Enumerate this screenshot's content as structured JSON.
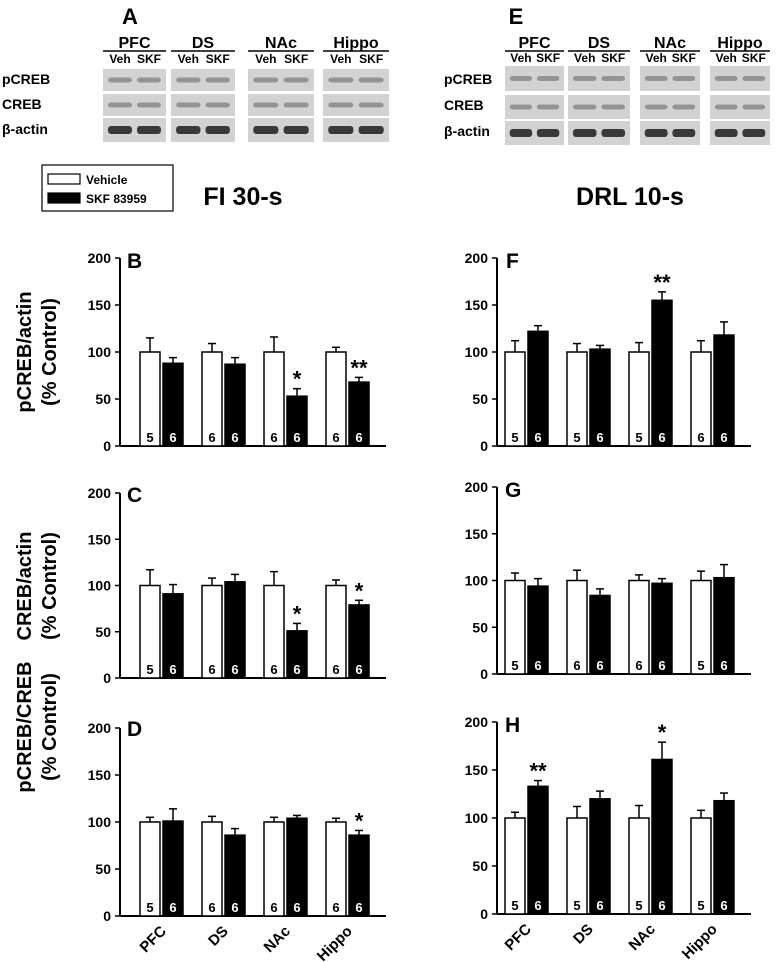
{
  "blot_panels": [
    {
      "letter": "A",
      "regions": [
        "PFC",
        "DS",
        "NAc",
        "Hippo"
      ],
      "lanes": [
        "Veh",
        "SKF"
      ],
      "rows": [
        "pCREB",
        "CREB",
        "β-actin"
      ]
    },
    {
      "letter": "E",
      "regions": [
        "PFC",
        "DS",
        "NAc",
        "Hippo"
      ],
      "lanes": [
        "Veh",
        "SKF"
      ],
      "rows": [
        "pCREB",
        "CREB",
        "β-actin"
      ]
    }
  ],
  "legend": {
    "items": [
      {
        "label": "Vehicle",
        "color": "#ffffff"
      },
      {
        "label": "SKF 83959",
        "color": "#000000"
      }
    ]
  },
  "column_titles": [
    "FI 30-s",
    "DRL 10-s"
  ],
  "row_ylabels": [
    [
      "pCREB/actin",
      "(% Control)"
    ],
    [
      "CREB/actin",
      "(% Control)"
    ],
    [
      "pCREB/CREB",
      "(% Control)"
    ]
  ],
  "chart_data": [
    {
      "type": "bar",
      "panel": "B",
      "categories": [
        "PFC",
        "DS",
        "NAc",
        "Hippo"
      ],
      "ylim": [
        0,
        200
      ],
      "yticks": [
        "0",
        "50",
        "100",
        "150",
        "200"
      ],
      "series": [
        {
          "name": "Vehicle",
          "values": [
            100,
            100,
            100,
            100
          ],
          "errors": [
            15,
            9,
            16,
            5
          ],
          "n": [
            "5",
            "6",
            "6",
            "6"
          ]
        },
        {
          "name": "SKF 83959",
          "values": [
            88,
            87,
            53,
            68
          ],
          "errors": [
            6,
            7,
            8,
            5
          ],
          "n": [
            "6",
            "6",
            "6",
            "6"
          ]
        }
      ],
      "significance": [
        "",
        "",
        "*",
        "**"
      ]
    },
    {
      "type": "bar",
      "panel": "C",
      "categories": [
        "PFC",
        "DS",
        "NAc",
        "Hippo"
      ],
      "ylim": [
        0,
        200
      ],
      "yticks": [
        "0",
        "50",
        "100",
        "150",
        "200"
      ],
      "series": [
        {
          "name": "Vehicle",
          "values": [
            100,
            100,
            100,
            100
          ],
          "errors": [
            17,
            8,
            15,
            6
          ],
          "n": [
            "5",
            "6",
            "6",
            "6"
          ]
        },
        {
          "name": "SKF 83959",
          "values": [
            91,
            104,
            51,
            79
          ],
          "errors": [
            10,
            8,
            8,
            5
          ],
          "n": [
            "6",
            "6",
            "6",
            "6"
          ]
        }
      ],
      "significance": [
        "",
        "",
        "*",
        "*"
      ]
    },
    {
      "type": "bar",
      "panel": "D",
      "categories": [
        "PFC",
        "DS",
        "NAc",
        "Hippo"
      ],
      "ylim": [
        0,
        200
      ],
      "yticks": [
        "0",
        "50",
        "100",
        "150",
        "200"
      ],
      "series": [
        {
          "name": "Vehicle",
          "values": [
            100,
            100,
            100,
            100
          ],
          "errors": [
            5,
            6,
            5,
            4
          ],
          "n": [
            "5",
            "6",
            "6",
            "6"
          ]
        },
        {
          "name": "SKF 83959",
          "values": [
            101,
            86,
            104,
            86
          ],
          "errors": [
            13,
            7,
            3,
            5
          ],
          "n": [
            "6",
            "6",
            "6",
            "6"
          ]
        }
      ],
      "significance": [
        "",
        "",
        "",
        "*"
      ]
    },
    {
      "type": "bar",
      "panel": "F",
      "categories": [
        "PFC",
        "DS",
        "NAc",
        "Hippo"
      ],
      "ylim": [
        0,
        200
      ],
      "yticks": [
        "0",
        "50",
        "100",
        "150",
        "200"
      ],
      "series": [
        {
          "name": "Vehicle",
          "values": [
            100,
            100,
            100,
            100
          ],
          "errors": [
            12,
            9,
            10,
            12
          ],
          "n": [
            "5",
            "5",
            "5",
            "6"
          ]
        },
        {
          "name": "SKF 83959",
          "values": [
            122,
            103,
            155,
            118
          ],
          "errors": [
            6,
            4,
            9,
            14
          ],
          "n": [
            "6",
            "6",
            "6",
            "6"
          ]
        }
      ],
      "significance": [
        "",
        "",
        "**",
        ""
      ]
    },
    {
      "type": "bar",
      "panel": "G",
      "categories": [
        "PFC",
        "DS",
        "NAc",
        "Hippo"
      ],
      "ylim": [
        0,
        200
      ],
      "yticks": [
        "0",
        "50",
        "100",
        "150",
        "200"
      ],
      "series": [
        {
          "name": "Vehicle",
          "values": [
            100,
            100,
            100,
            100
          ],
          "errors": [
            8,
            11,
            6,
            10
          ],
          "n": [
            "5",
            "6",
            "6",
            "5"
          ]
        },
        {
          "name": "SKF 83959",
          "values": [
            94,
            84,
            97,
            103
          ],
          "errors": [
            8,
            7,
            5,
            14
          ],
          "n": [
            "6",
            "6",
            "6",
            "6"
          ]
        }
      ],
      "significance": [
        "",
        "",
        "",
        ""
      ]
    },
    {
      "type": "bar",
      "panel": "H",
      "categories": [
        "PFC",
        "DS",
        "NAc",
        "Hippo"
      ],
      "ylim": [
        0,
        200
      ],
      "yticks": [
        "0",
        "50",
        "100",
        "150",
        "200"
      ],
      "series": [
        {
          "name": "Vehicle",
          "values": [
            100,
            100,
            100,
            100
          ],
          "errors": [
            6,
            12,
            13,
            8
          ],
          "n": [
            "5",
            "5",
            "5",
            "5"
          ]
        },
        {
          "name": "SKF 83959",
          "values": [
            133,
            120,
            161,
            118
          ],
          "errors": [
            6,
            8,
            18,
            8
          ],
          "n": [
            "6",
            "6",
            "6",
            "6"
          ]
        }
      ],
      "significance": [
        "**",
        "",
        "*",
        ""
      ]
    }
  ]
}
